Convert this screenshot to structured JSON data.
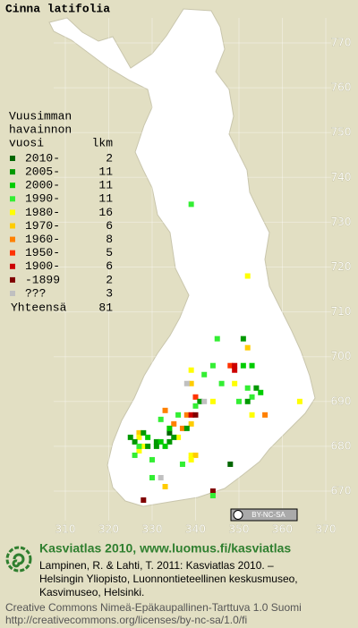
{
  "title": "Cinna latifolia",
  "legend": {
    "heading": [
      "Vuusimman",
      "havainnon",
      "vuosi"
    ],
    "count_heading": "lkm",
    "rows": [
      {
        "label": "2010-",
        "count": 2,
        "color": "#006600"
      },
      {
        "label": "2005-",
        "count": 11,
        "color": "#009900"
      },
      {
        "label": "2000-",
        "count": 11,
        "color": "#00cc00"
      },
      {
        "label": "1990-",
        "count": 11,
        "color": "#33ee33"
      },
      {
        "label": "1980-",
        "count": 16,
        "color": "#ffff00"
      },
      {
        "label": "1970-",
        "count": 6,
        "color": "#ffcc00"
      },
      {
        "label": "1960-",
        "count": 8,
        "color": "#ff8000"
      },
      {
        "label": "1950-",
        "count": 5,
        "color": "#ff3300"
      },
      {
        "label": "1900-",
        "count": 6,
        "color": "#cc0000"
      },
      {
        "label": "-1899",
        "count": 2,
        "color": "#800000"
      },
      {
        "label": "???",
        "count": 3,
        "color": "#c0c0c0"
      }
    ],
    "total_label": "Yhteensä",
    "total": 81
  },
  "map": {
    "x_ticks": [
      310,
      320,
      330,
      340,
      350,
      360,
      370
    ],
    "y_ticks": [
      670,
      680,
      690,
      700,
      710,
      720,
      730,
      740,
      750,
      760,
      770
    ],
    "records": [
      [
        339,
        734,
        3
      ],
      [
        352,
        718,
        4
      ],
      [
        345,
        704,
        3
      ],
      [
        351,
        704,
        1
      ],
      [
        352,
        702,
        5
      ],
      [
        348,
        698,
        7
      ],
      [
        349,
        698,
        8
      ],
      [
        349,
        697,
        8
      ],
      [
        351,
        698,
        2
      ],
      [
        344,
        698,
        3
      ],
      [
        339,
        697,
        4
      ],
      [
        353,
        698,
        2
      ],
      [
        342,
        696,
        3
      ],
      [
        339,
        694,
        5
      ],
      [
        349,
        694,
        4
      ],
      [
        346,
        694,
        3
      ],
      [
        352,
        693,
        3
      ],
      [
        354,
        693,
        1
      ],
      [
        353,
        691,
        3
      ],
      [
        352,
        690,
        1
      ],
      [
        355,
        692,
        2
      ],
      [
        338,
        694,
        10
      ],
      [
        340,
        691,
        7
      ],
      [
        341,
        690,
        1
      ],
      [
        342,
        690,
        10
      ],
      [
        344,
        690,
        4
      ],
      [
        364,
        690,
        4
      ],
      [
        356,
        687,
        6
      ],
      [
        353,
        687,
        4
      ],
      [
        350,
        690,
        3
      ],
      [
        333,
        688,
        6
      ],
      [
        336,
        687,
        3
      ],
      [
        338,
        687,
        6
      ],
      [
        339,
        687,
        8
      ],
      [
        340,
        687,
        9
      ],
      [
        339,
        685,
        5
      ],
      [
        340,
        689,
        3
      ],
      [
        332,
        686,
        3
      ],
      [
        335,
        685,
        6
      ],
      [
        337,
        684,
        6
      ],
      [
        338,
        684,
        1
      ],
      [
        334,
        684,
        4
      ],
      [
        336,
        682,
        4
      ],
      [
        339,
        678,
        4
      ],
      [
        340,
        678,
        5
      ],
      [
        337,
        676,
        3
      ],
      [
        339,
        677,
        4
      ],
      [
        348,
        676,
        0
      ],
      [
        344,
        670,
        9
      ],
      [
        344,
        669,
        3
      ],
      [
        328,
        668,
        9
      ],
      [
        330,
        673,
        3
      ],
      [
        332,
        673,
        10
      ],
      [
        333,
        671,
        5
      ],
      [
        327,
        679,
        4
      ],
      [
        327,
        683,
        5
      ],
      [
        327,
        682,
        4
      ],
      [
        325,
        682,
        1
      ],
      [
        326,
        681,
        1
      ],
      [
        328,
        683,
        1
      ],
      [
        329,
        682,
        2
      ],
      [
        331,
        681,
        1
      ],
      [
        332,
        681,
        2
      ],
      [
        334,
        683,
        0
      ],
      [
        335,
        682,
        1
      ],
      [
        334,
        681,
        1
      ],
      [
        334,
        684,
        2
      ],
      [
        333,
        680,
        2
      ],
      [
        331,
        680,
        1
      ],
      [
        328,
        680,
        4
      ],
      [
        327,
        680,
        3
      ],
      [
        326,
        678,
        3
      ],
      [
        330,
        677,
        3
      ],
      [
        329,
        680,
        1
      ]
    ]
  },
  "license_badge": "BY-NC-SA",
  "footer": {
    "headline": "Kasviatlas 2010, www.luomus.fi/kasviatlas",
    "citation": [
      "Lampinen, R. & Lahti, T. 2011: Kasviatlas 2010. –",
      "Helsingin Yliopisto, Luonnontieteellinen keskusmuseo,",
      "Kasvimuseo, Helsinki."
    ],
    "license": [
      "Creative Commons Nimeä-Epäkaupallinen-Tarttuva 1.0 Suomi",
      "http://creativecommons.org/licenses/by-nc-sa/1.0/fi"
    ]
  }
}
